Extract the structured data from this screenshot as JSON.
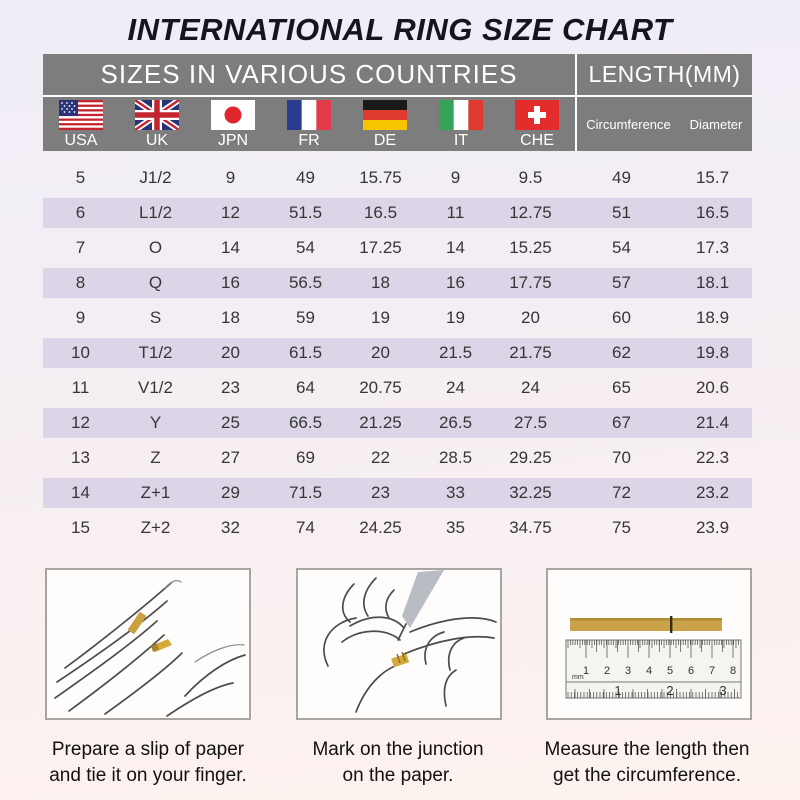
{
  "title": "INTERNATIONAL RING SIZE CHART",
  "table": {
    "header_left": "SIZES IN VARIOUS COUNTRIES",
    "header_right": "LENGTH(MM)",
    "countries": [
      {
        "code": "USA"
      },
      {
        "code": "UK"
      },
      {
        "code": "JPN"
      },
      {
        "code": "FR"
      },
      {
        "code": "DE"
      },
      {
        "code": "IT"
      },
      {
        "code": "CHE"
      }
    ],
    "length_columns": [
      "Circumference",
      "Diameter"
    ],
    "rows": [
      [
        "5",
        "J1/2",
        "9",
        "49",
        "15.75",
        "9",
        "9.5",
        "49",
        "15.7"
      ],
      [
        "6",
        "L1/2",
        "12",
        "51.5",
        "16.5",
        "11",
        "12.75",
        "51",
        "16.5"
      ],
      [
        "7",
        "O",
        "14",
        "54",
        "17.25",
        "14",
        "15.25",
        "54",
        "17.3"
      ],
      [
        "8",
        "Q",
        "16",
        "56.5",
        "18",
        "16",
        "17.75",
        "57",
        "18.1"
      ],
      [
        "9",
        "S",
        "18",
        "59",
        "19",
        "19",
        "20",
        "60",
        "18.9"
      ],
      [
        "10",
        "T1/2",
        "20",
        "61.5",
        "20",
        "21.5",
        "21.75",
        "62",
        "19.8"
      ],
      [
        "11",
        "V1/2",
        "23",
        "64",
        "20.75",
        "24",
        "24",
        "65",
        "20.6"
      ],
      [
        "12",
        "Y",
        "25",
        "66.5",
        "21.25",
        "26.5",
        "27.5",
        "67",
        "21.4"
      ],
      [
        "13",
        "Z",
        "27",
        "69",
        "22",
        "28.5",
        "29.25",
        "70",
        "22.3"
      ],
      [
        "14",
        "Z+1",
        "29",
        "71.5",
        "23",
        "33",
        "32.25",
        "72",
        "23.2"
      ],
      [
        "15",
        "Z+2",
        "32",
        "74",
        "24.25",
        "35",
        "34.75",
        "75",
        "23.9"
      ]
    ]
  },
  "chart_data": {
    "type": "table",
    "title": "INTERNATIONAL RING SIZE CHART",
    "columns": [
      "USA",
      "UK",
      "JPN",
      "FR",
      "DE",
      "IT",
      "CHE",
      "Circumference",
      "Diameter"
    ],
    "rows": [
      [
        "5",
        "J1/2",
        "9",
        "49",
        "15.75",
        "9",
        "9.5",
        "49",
        "15.7"
      ],
      [
        "6",
        "L1/2",
        "12",
        "51.5",
        "16.5",
        "11",
        "12.75",
        "51",
        "16.5"
      ],
      [
        "7",
        "O",
        "14",
        "54",
        "17.25",
        "14",
        "15.25",
        "54",
        "17.3"
      ],
      [
        "8",
        "Q",
        "16",
        "56.5",
        "18",
        "16",
        "17.75",
        "57",
        "18.1"
      ],
      [
        "9",
        "S",
        "18",
        "59",
        "19",
        "19",
        "20",
        "60",
        "18.9"
      ],
      [
        "10",
        "T1/2",
        "20",
        "61.5",
        "20",
        "21.5",
        "21.75",
        "62",
        "19.8"
      ],
      [
        "11",
        "V1/2",
        "23",
        "64",
        "20.75",
        "24",
        "24",
        "65",
        "20.6"
      ],
      [
        "12",
        "Y",
        "25",
        "66.5",
        "21.25",
        "26.5",
        "27.5",
        "67",
        "21.4"
      ],
      [
        "13",
        "Z",
        "27",
        "69",
        "22",
        "28.5",
        "29.25",
        "70",
        "22.3"
      ],
      [
        "14",
        "Z+1",
        "29",
        "71.5",
        "23",
        "33",
        "32.25",
        "72",
        "23.2"
      ],
      [
        "15",
        "Z+2",
        "32",
        "74",
        "24.25",
        "35",
        "34.75",
        "75",
        "23.9"
      ]
    ]
  },
  "instructions": [
    {
      "line1": "Prepare a slip of paper",
      "line2": "and tie it on your finger."
    },
    {
      "line1": "Mark on the junction",
      "line2": "on the paper."
    },
    {
      "line1": "Measure the length then",
      "line2": "get the circumference."
    }
  ],
  "ruler": {
    "mm_numbers": [
      "1",
      "2",
      "3",
      "4",
      "5",
      "6",
      "7",
      "8"
    ],
    "inch_numbers": [
      "1",
      "2",
      "3"
    ],
    "unit_label": "mm"
  },
  "colors": {
    "header_gray": "#7d7d7d",
    "row_shade": "#dcd5e7",
    "background_top": "#f0edf7",
    "background_bottom": "#fdf2ee",
    "paper_strip": "#c9a24a"
  }
}
